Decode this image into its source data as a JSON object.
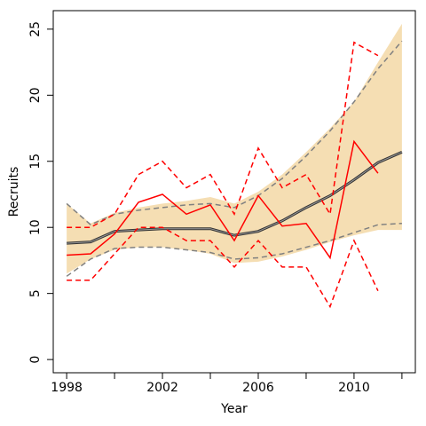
{
  "chart_data": {
    "type": "line",
    "xlabel": "Year",
    "ylabel": "Recruits",
    "x": [
      1998,
      1999,
      2000,
      2001,
      2002,
      2003,
      2004,
      2005,
      2006,
      2007,
      2008,
      2009,
      2010,
      2011,
      2012
    ],
    "xlim": [
      1997.44,
      2012.56
    ],
    "ylim": [
      -1.0,
      26.4
    ],
    "xticks": [
      1998,
      2002,
      2006,
      2010
    ],
    "xminor_ticks": [
      2000,
      2004,
      2008,
      2012
    ],
    "yticks": [
      0,
      5,
      10,
      15,
      20,
      25
    ],
    "band": {
      "color": "#f5deb3",
      "upper": [
        11.8,
        10.3,
        11.1,
        11.5,
        11.8,
        12.0,
        12.3,
        11.8,
        12.7,
        14.0,
        15.7,
        17.5,
        19.5,
        22.5,
        25.4
      ],
      "lower": [
        6.5,
        7.6,
        8.3,
        8.5,
        8.5,
        8.3,
        8.0,
        7.3,
        7.4,
        7.8,
        8.3,
        8.9,
        9.4,
        9.8,
        9.8
      ]
    },
    "series": [
      {
        "color": "#808080",
        "dash": true,
        "width": 1.5,
        "values": [
          11.8,
          10.2,
          11.0,
          11.3,
          11.5,
          11.7,
          11.8,
          11.5,
          12.4,
          13.7,
          15.4,
          17.3,
          19.5,
          22.0,
          24.1
        ]
      },
      {
        "color": "#808080",
        "dash": true,
        "width": 1.5,
        "values": [
          6.3,
          7.6,
          8.4,
          8.5,
          8.5,
          8.3,
          8.1,
          7.6,
          7.7,
          8.0,
          8.5,
          9.0,
          9.6,
          10.2,
          10.3
        ]
      },
      {
        "color": "#333333",
        "inner_color": "#999999",
        "dash": false,
        "width": 3,
        "values": [
          8.8,
          8.9,
          9.7,
          9.8,
          9.9,
          9.9,
          9.9,
          9.4,
          9.7,
          10.5,
          11.5,
          12.4,
          13.6,
          14.9,
          15.7
        ]
      },
      {
        "color": "#ff0000",
        "dash": false,
        "width": 1.5,
        "values": [
          7.9,
          8.0,
          9.5,
          11.9,
          12.5,
          11.0,
          11.7,
          9.0,
          12.4,
          10.1,
          10.3,
          7.7,
          16.5,
          14.1,
          null
        ]
      },
      {
        "color": "#ff0000",
        "dash": true,
        "width": 1.5,
        "values": [
          10,
          10,
          11,
          14,
          15,
          13,
          14,
          11,
          16,
          13,
          14,
          11,
          24,
          23,
          null
        ]
      },
      {
        "color": "#ff0000",
        "dash": true,
        "width": 1.5,
        "values": [
          6,
          6,
          8,
          10,
          10,
          9,
          9,
          7,
          9,
          7,
          7,
          4,
          9,
          5.2,
          null
        ]
      }
    ]
  }
}
